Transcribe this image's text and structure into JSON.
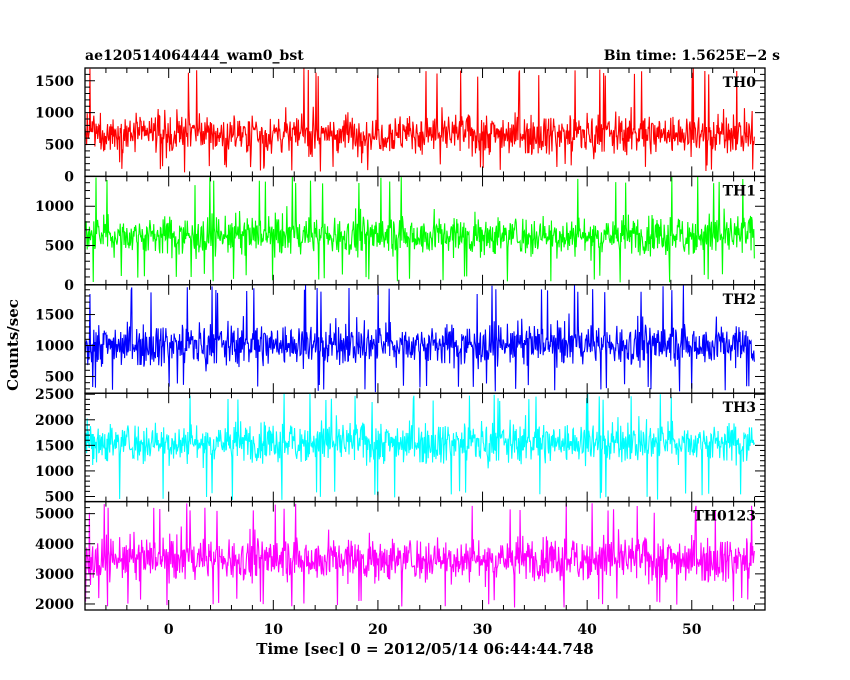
{
  "chart_data": {
    "type": "line",
    "title_left": "ae120514064444_wam0_bst",
    "title_right": "Bin time: 1.5625E−2 s",
    "xlabel": "Time [sec] 0 = 2012/05/14 06:44:44.748",
    "ylabel": "Counts/sec",
    "xlim": [
      -8,
      57
    ],
    "x_data_range": [
      -8,
      56
    ],
    "x_ticks": [
      0,
      10,
      20,
      30,
      40,
      50
    ],
    "grid": false,
    "panels": [
      {
        "label": "TH0",
        "color": "#ff0000",
        "ylim": [
          0,
          1700
        ],
        "yticks": [
          0,
          500,
          1000,
          1500
        ],
        "baseline": 670,
        "band": 550,
        "spike_low": 60,
        "spike_high": 1700
      },
      {
        "label": "TH1",
        "color": "#00ff00",
        "ylim": [
          0,
          1380
        ],
        "yticks": [
          0,
          500,
          1000
        ],
        "baseline": 630,
        "band": 450,
        "spike_low": 30,
        "spike_high": 1380
      },
      {
        "label": "TH2",
        "color": "#0000ff",
        "ylim": [
          230,
          1980
        ],
        "yticks": [
          500,
          1000,
          1500
        ],
        "baseline": 1020,
        "band": 600,
        "spike_low": 240,
        "spike_high": 1980
      },
      {
        "label": "TH3",
        "color": "#00ffff",
        "ylim": [
          400,
          2520
        ],
        "yticks": [
          500,
          1000,
          1500,
          2000,
          2500
        ],
        "baseline": 1560,
        "band": 700,
        "spike_low": 430,
        "spike_high": 2520
      },
      {
        "label": "TH0123",
        "color": "#ff00ff",
        "ylim": [
          1800,
          5400
        ],
        "yticks": [
          2000,
          3000,
          4000,
          5000
        ],
        "baseline": 3500,
        "band": 1300,
        "spike_low": 1880,
        "spike_high": 5350
      }
    ]
  }
}
